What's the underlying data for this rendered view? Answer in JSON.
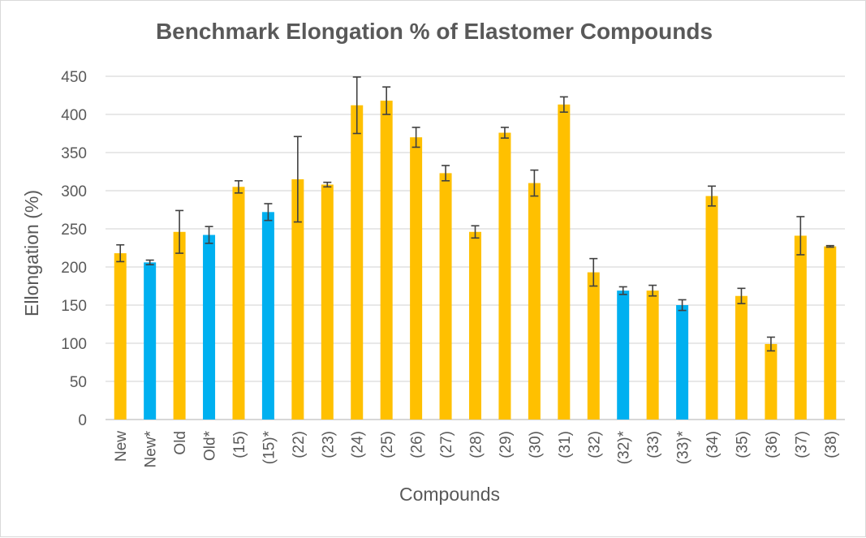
{
  "chart_data": {
    "type": "bar",
    "title": "Benchmark Elongation % of Elastomer Compounds",
    "xlabel": "Compounds",
    "ylabel": "Ellongation (%)",
    "ylim": [
      0,
      450
    ],
    "yticks": [
      0,
      50,
      100,
      150,
      200,
      250,
      300,
      350,
      400,
      450
    ],
    "grid": true,
    "legend": "none",
    "colors": {
      "standard": "#FFC000",
      "starred": "#00B0F0",
      "error_bar": "#404040"
    },
    "categories": [
      "New",
      "New*",
      "Old",
      "Old*",
      "(15)",
      "(15)*",
      "(22)",
      "(23)",
      "(24)",
      "(25)",
      "(26)",
      "(27)",
      "(28)",
      "(29)",
      "(30)",
      "(31)",
      "(32)",
      "(32)*",
      "(33)",
      "(33)*",
      "(34)",
      "(35)",
      "(36)",
      "(37)",
      "(38)"
    ],
    "values": [
      218,
      206,
      246,
      242,
      305,
      272,
      315,
      308,
      412,
      418,
      370,
      323,
      246,
      376,
      310,
      413,
      193,
      169,
      169,
      150,
      293,
      162,
      99,
      241,
      227
    ],
    "errors": [
      11,
      3,
      28,
      11,
      8,
      11,
      56,
      3,
      37,
      18,
      13,
      10,
      8,
      7,
      17,
      10,
      18,
      5,
      7,
      7,
      13,
      10,
      9,
      25,
      1
    ],
    "highlight": [
      false,
      true,
      false,
      true,
      false,
      true,
      false,
      false,
      false,
      false,
      false,
      false,
      false,
      false,
      false,
      false,
      false,
      true,
      false,
      true,
      false,
      false,
      false,
      false,
      false
    ]
  }
}
